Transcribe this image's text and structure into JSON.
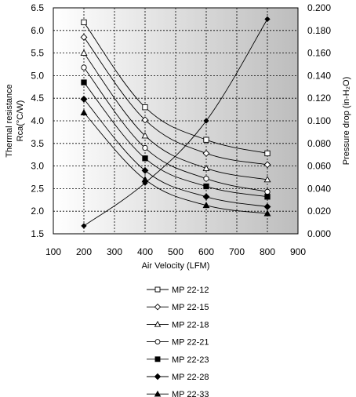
{
  "chart_data": {
    "type": "line",
    "xlabel": "Air Velocity (LFM)",
    "ylabel_left_line1": "Thermal resistance",
    "ylabel_left_line2": "Rca(°C/W)",
    "ylabel_right": "Pressure drop (in-H₂O)",
    "xlim": [
      100,
      900
    ],
    "ylim_left": [
      1.5,
      6.5
    ],
    "ylim_right": [
      0.0,
      0.2
    ],
    "x_ticks": [
      "100",
      "200",
      "300",
      "400",
      "500",
      "600",
      "700",
      "800",
      "900"
    ],
    "y_left_ticks": [
      "1.5",
      "2.0",
      "2.5",
      "3.0",
      "3.5",
      "4.0",
      "4.5",
      "5.0",
      "5.5",
      "6.0",
      "6.5"
    ],
    "y_right_ticks": [
      "0.000",
      "0.020",
      "0.040",
      "0.060",
      "0.080",
      "0.100",
      "0.120",
      "0.140",
      "0.160",
      "0.180",
      "0.200"
    ],
    "grid": true,
    "x": [
      200,
      400,
      600,
      800
    ],
    "series": [
      {
        "name": "MP 22-12",
        "marker": "square-open",
        "values": [
          6.18,
          4.3,
          3.58,
          3.28
        ]
      },
      {
        "name": "MP 22-15",
        "marker": "diamond-open",
        "values": [
          5.85,
          4.02,
          3.28,
          3.03
        ]
      },
      {
        "name": "MP 22-18",
        "marker": "triangle-open",
        "values": [
          5.5,
          3.67,
          2.95,
          2.7
        ]
      },
      {
        "name": "MP 22-21",
        "marker": "circle-open",
        "values": [
          5.18,
          3.4,
          2.72,
          2.43
        ]
      },
      {
        "name": "MP 22-23",
        "marker": "square-filled",
        "values": [
          4.85,
          3.17,
          2.55,
          2.32
        ]
      },
      {
        "name": "MP 22-28",
        "marker": "diamond-filled",
        "values": [
          4.48,
          2.9,
          2.32,
          2.1
        ]
      },
      {
        "name": "MP 22-33",
        "marker": "triangle-filled",
        "values": [
          4.18,
          2.7,
          2.13,
          1.95
        ]
      }
    ],
    "pressure_drop": {
      "marker": "diamond-filled",
      "values": [
        0.007,
        0.045,
        0.1,
        0.19
      ]
    }
  }
}
